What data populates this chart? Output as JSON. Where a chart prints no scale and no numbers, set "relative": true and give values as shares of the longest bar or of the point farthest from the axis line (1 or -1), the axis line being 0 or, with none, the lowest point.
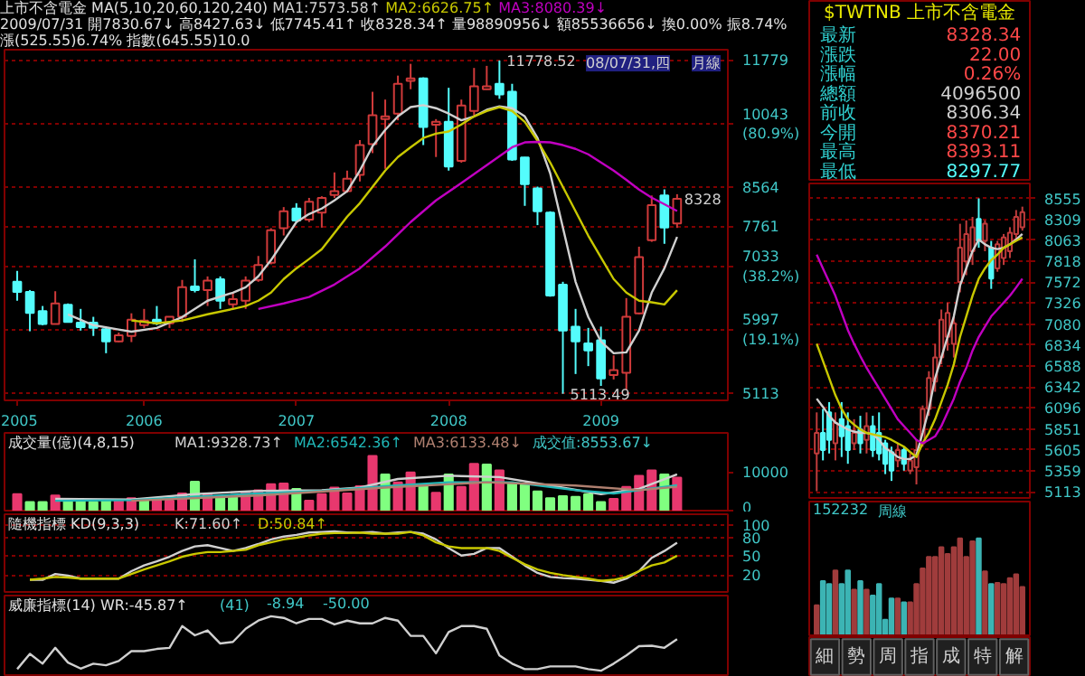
{
  "chart_data": [
    {
      "type": "candlestick",
      "title": "上市不含電金 MA(5,10,20,60,120,240)",
      "subtitle": "2009/07/31 開7830.67↓ 高8427.63↓ 低7745.41↑ 收8328.34↑ 量98890956↓ 額85536656↓ 換0.00% 振8.74% 漲(525.55)6.74% 指數(645.55)10.0",
      "log": true,
      "grid": "y",
      "x": [
        "2005-03",
        "2005-04",
        "2005-05",
        "2005-06",
        "2005-07",
        "2005-08",
        "2005-09",
        "2005-10",
        "2005-11",
        "2005-12",
        "2006-01",
        "2006-02",
        "2006-03",
        "2006-04",
        "2006-05",
        "2006-06",
        "2006-07",
        "2006-08",
        "2006-09",
        "2006-10",
        "2006-11",
        "2006-12",
        "2007-01",
        "2007-02",
        "2007-03",
        "2007-04",
        "2007-05",
        "2007-06",
        "2007-07",
        "2007-08",
        "2007-09",
        "2007-10",
        "2007-11",
        "2007-12",
        "2008-01",
        "2008-02",
        "2008-03",
        "2008-04",
        "2008-05",
        "2008-06",
        "2008-07",
        "2008-08",
        "2008-09",
        "2008-10",
        "2008-11",
        "2008-12",
        "2009-01",
        "2009-02",
        "2009-03",
        "2009-04",
        "2009-05",
        "2009-06",
        "2009-07"
      ],
      "ohlc": [
        [
          6768,
          6955,
          6455,
          6600
        ],
        [
          6600,
          6630,
          5980,
          6260
        ],
        [
          6290,
          6370,
          6070,
          6090
        ],
        [
          6090,
          6610,
          6090,
          6411
        ],
        [
          6390,
          6411,
          6110,
          6120
        ],
        [
          6110,
          6324,
          5990,
          6040
        ],
        [
          6110,
          6200,
          5910,
          6030
        ],
        [
          6010,
          6030,
          5660,
          5830
        ],
        [
          5830,
          5960,
          5820,
          5920
        ],
        [
          5910,
          6255,
          5820,
          6155
        ],
        [
          6072,
          6324,
          6030,
          6140
        ],
        [
          6155,
          6370,
          6072,
          6100
        ],
        [
          6100,
          6200,
          6030,
          6200
        ],
        [
          6200,
          6800,
          6120,
          6677
        ],
        [
          6690,
          7160,
          6590,
          6630
        ],
        [
          6630,
          6860,
          6370,
          6790
        ],
        [
          6810,
          6860,
          6324,
          6455
        ],
        [
          6395,
          6590,
          6324,
          6480
        ],
        [
          6455,
          6860,
          6324,
          6790
        ],
        [
          6800,
          7220,
          6768,
          7060
        ],
        [
          7100,
          7740,
          7070,
          7700
        ],
        [
          7740,
          8160,
          7600,
          8075
        ],
        [
          8130,
          8240,
          7840,
          7890
        ],
        [
          7910,
          8350,
          7860,
          8270
        ],
        [
          8050,
          8385,
          7750,
          8350
        ],
        [
          8411,
          8900,
          8350,
          8490
        ],
        [
          8490,
          8940,
          8460,
          8760
        ],
        [
          8845,
          9650,
          8700,
          9530
        ],
        [
          9550,
          10890,
          9340,
          10270
        ],
        [
          10170,
          10680,
          8980,
          10240
        ],
        [
          10310,
          11340,
          10140,
          11110
        ],
        [
          11190,
          11680,
          10960,
          11260
        ],
        [
          11260,
          11290,
          9530,
          9970
        ],
        [
          10030,
          10170,
          9250,
          10100
        ],
        [
          10100,
          11000,
          8940,
          9030
        ],
        [
          9160,
          10680,
          9120,
          10520
        ],
        [
          10380,
          11560,
          10240,
          11040
        ],
        [
          10960,
          11620,
          10950,
          11040
        ],
        [
          11110,
          11778.52,
          10700,
          10820
        ],
        [
          10890,
          11110,
          9160,
          9190
        ],
        [
          9240,
          9250,
          8185,
          8640
        ],
        [
          8550,
          8590,
          7800,
          8075
        ],
        [
          8050,
          8075,
          6520,
          6540
        ],
        [
          6720,
          6768,
          5113.49,
          5990
        ],
        [
          6050,
          6324,
          5373,
          5829
        ],
        [
          5800,
          6030,
          5480,
          5700
        ],
        [
          5845,
          6050,
          5215,
          5315
        ],
        [
          5360,
          5630,
          5300,
          5425
        ],
        [
          5390,
          6498,
          5160,
          6200
        ],
        [
          6255,
          7390,
          6240,
          7200
        ],
        [
          7510,
          8400,
          7480,
          8200
        ],
        [
          8400,
          8530,
          7443,
          7753
        ],
        [
          7830.67,
          8427.63,
          7745.41,
          8328.34
        ]
      ],
      "colors": [
        "#54fcfc",
        "#54fcfc",
        "#54fcfc",
        "#d03a3a",
        "#54fcfc",
        "#54fcfc",
        "#54fcfc",
        "#54fcfc",
        "#d03a3a",
        "#d03a3a",
        "#d03a3a",
        "#54fcfc",
        "#d03a3a",
        "#d03a3a",
        "#54fcfc",
        "#d03a3a",
        "#54fcfc",
        "#d03a3a",
        "#d03a3a",
        "#d03a3a",
        "#d03a3a",
        "#d03a3a",
        "#54fcfc",
        "#d03a3a",
        "#d03a3a",
        "#d03a3a",
        "#d03a3a",
        "#d03a3a",
        "#d03a3a",
        "#d03a3a",
        "#d03a3a",
        "#d03a3a",
        "#54fcfc",
        "#d03a3a",
        "#54fcfc",
        "#d03a3a",
        "#d03a3a",
        "#d03a3a",
        "#54fcfc",
        "#54fcfc",
        "#54fcfc",
        "#54fcfc",
        "#54fcfc",
        "#54fcfc",
        "#54fcfc",
        "#54fcfc",
        "#54fcfc",
        "#d03a3a",
        "#d03a3a",
        "#d03a3a",
        "#d03a3a",
        "#54fcfc",
        "#d03a3a"
      ],
      "series": [
        {
          "type": "line",
          "name": "MA1:7573.58↑",
          "color": "#d0d0d0",
          "x": [
            "2005-07",
            "2005-09",
            "2005-11",
            "2005-12",
            "2006-02",
            "2006-04",
            "2006-06",
            "2006-08",
            "2006-09",
            "2006-10",
            "2006-11",
            "2006-12",
            "2007-01",
            "2007-02",
            "2007-03",
            "2007-04",
            "2007-05",
            "2007-06",
            "2007-07",
            "2007-08",
            "2007-09",
            "2007-10",
            "2007-11",
            "2007-12",
            "2008-01",
            "2008-02",
            "2008-03",
            "2008-04",
            "2008-05",
            "2008-06",
            "2008-07",
            "2008-08",
            "2008-09",
            "2008-10",
            "2008-11",
            "2008-12",
            "2009-01",
            "2009-02",
            "2009-03",
            "2009-04",
            "2009-05",
            "2009-06",
            "2009-07"
          ],
          "values": [
            6239,
            6072,
            6006,
            5974,
            6030,
            6197,
            6455,
            6587,
            6677,
            6861,
            7146,
            7494,
            7859,
            8020,
            8130,
            8297,
            8490,
            8940,
            9504,
            9899,
            10240,
            10480,
            10530,
            10452,
            10311,
            10140,
            10240,
            10410,
            10500,
            10452,
            10240,
            9700,
            8880,
            7753,
            6768,
            6197,
            5829,
            5660,
            5673,
            5990,
            6587,
            7000,
            7573.58
          ]
        },
        {
          "type": "line",
          "name": "MA2:6626.75↑",
          "color": "#c8c800",
          "x": [
            "2005-12",
            "2006-02",
            "2006-04",
            "2006-06",
            "2006-08",
            "2006-09",
            "2006-10",
            "2006-11",
            "2006-12",
            "2007-01",
            "2007-02",
            "2007-03",
            "2007-04",
            "2007-05",
            "2007-06",
            "2007-07",
            "2007-08",
            "2007-09",
            "2007-10",
            "2007-11",
            "2007-12",
            "2008-01",
            "2008-02",
            "2008-03",
            "2008-04",
            "2008-05",
            "2008-06",
            "2008-07",
            "2008-08",
            "2008-09",
            "2008-10",
            "2008-11",
            "2008-12",
            "2009-01",
            "2009-02",
            "2009-03",
            "2009-04",
            "2009-05",
            "2009-06",
            "2009-07"
          ],
          "values": [
            6143,
            6100,
            6143,
            6239,
            6324,
            6370,
            6455,
            6587,
            6815,
            7000,
            7165,
            7343,
            7648,
            7966,
            8240,
            8584,
            8940,
            9249,
            9478,
            9700,
            9806,
            9860,
            10034,
            10240,
            10380,
            10480,
            10380,
            10100,
            9634,
            9124,
            8584,
            8075,
            7596,
            7195,
            6815,
            6587,
            6455,
            6430,
            6395,
            6626.75
          ]
        },
        {
          "type": "line",
          "name": "MA3:8080.39↓",
          "color": "#c000c0",
          "x": [
            "2006-10",
            "2006-12",
            "2007-02",
            "2007-04",
            "2007-06",
            "2007-08",
            "2007-10",
            "2007-12",
            "2008-02",
            "2008-04",
            "2008-06",
            "2008-07",
            "2008-08",
            "2008-09",
            "2008-10",
            "2008-11",
            "2008-12",
            "2009-01",
            "2009-02",
            "2009-03",
            "2009-04",
            "2009-05",
            "2009-06",
            "2009-07"
          ],
          "values": [
            6324,
            6411,
            6515,
            6722,
            7000,
            7393,
            7859,
            8297,
            8666,
            9062,
            9478,
            9595,
            9608,
            9595,
            9530,
            9440,
            9312,
            9124,
            8940,
            8736,
            8526,
            8354,
            8218,
            8080.39
          ]
        }
      ],
      "xlim": [
        "2005-02",
        "2009-11"
      ],
      "ylim": [
        5030,
        12100
      ],
      "xticks": [
        {
          "value": "2005-03",
          "label": "2005"
        },
        {
          "value": "2006-01",
          "label": "2006"
        },
        {
          "value": "2007-01",
          "label": "2007"
        },
        {
          "value": "2008-01",
          "label": "2008"
        },
        {
          "value": "2009-01",
          "label": "2009"
        }
      ],
      "yticks": [
        11779,
        {
          "value": 10043,
          "label": "10043\n(80.9%)"
        },
        8564,
        7761,
        {
          "value": 7033,
          "label": "7033\n(38.2%)"
        },
        {
          "value": 5997,
          "label": "5997\n(19.1%)"
        },
        5113
      ],
      "annotations": [
        {
          "text": "11778.52",
          "x": "2008-05",
          "y": 11778.52
        },
        {
          "text": "5113.49",
          "x": "2008-10",
          "y": 5113.49
        },
        {
          "text": "8328",
          "x": "2009-07",
          "y": 8328.34
        },
        "08/07/31,四",
        "月線"
      ]
    },
    {
      "type": "bar",
      "title": "成交量(億)(4,8,15)",
      "tick_labels": "y",
      "x": [
        "2005-03",
        "2005-04",
        "2005-05",
        "2005-06",
        "2005-07",
        "2005-08",
        "2005-09",
        "2005-10",
        "2005-11",
        "2005-12",
        "2006-01",
        "2006-02",
        "2006-03",
        "2006-04",
        "2006-05",
        "2006-06",
        "2006-07",
        "2006-08",
        "2006-09",
        "2006-10",
        "2006-11",
        "2006-12",
        "2007-01",
        "2007-02",
        "2007-03",
        "2007-04",
        "2007-05",
        "2007-06",
        "2007-07",
        "2007-08",
        "2007-09",
        "2007-10",
        "2007-11",
        "2007-12",
        "2008-01",
        "2008-02",
        "2008-03",
        "2008-04",
        "2008-05",
        "2008-06",
        "2008-07",
        "2008-08",
        "2008-09",
        "2008-10",
        "2008-11",
        "2008-12",
        "2009-01",
        "2009-02",
        "2009-03",
        "2009-04",
        "2009-05",
        "2009-06",
        "2009-07"
      ],
      "values": [
        4240,
        2200,
        2200,
        3900,
        2700,
        2700,
        2200,
        2540,
        2540,
        3220,
        2700,
        2540,
        2540,
        4400,
        7460,
        4240,
        3730,
        3390,
        4900,
        5250,
        6780,
        6950,
        5590,
        2540,
        4240,
        5930,
        4400,
        6270,
        14070,
        9320,
        7290,
        9830,
        6440,
        4580,
        9320,
        6100,
        12040,
        11870,
        10340,
        6950,
        6610,
        4920,
        3220,
        3730,
        3560,
        4240,
        2200,
        3050,
        6100,
        8980,
        10340,
        9320,
        8480
      ],
      "colors": [
        "#e8386e",
        "#80ff80",
        "#80ff80",
        "#e8386e",
        "#80ff80",
        "#80ff80",
        "#80ff80",
        "#80ff80",
        "#e8386e",
        "#e8386e",
        "#80ff80",
        "#e8386e",
        "#e8386e",
        "#e8386e",
        "#80ff80",
        "#e8386e",
        "#80ff80",
        "#80ff80",
        "#e8386e",
        "#e8386e",
        "#e8386e",
        "#e8386e",
        "#80ff80",
        "#e8386e",
        "#e8386e",
        "#e8386e",
        "#e8386e",
        "#e8386e",
        "#e8386e",
        "#80ff80",
        "#e8386e",
        "#e8386e",
        "#80ff80",
        "#e8386e",
        "#80ff80",
        "#e8386e",
        "#e8386e",
        "#80ff80",
        "#e8386e",
        "#80ff80",
        "#80ff80",
        "#80ff80",
        "#80ff80",
        "#80ff80",
        "#80ff80",
        "#80ff80",
        "#80ff80",
        "#e8386e",
        "#e8386e",
        "#e8386e",
        "#e8386e",
        "#80ff80",
        "#e8386e"
      ],
      "series": [
        {
          "type": "line",
          "name": "MA1:9328.73↑",
          "color": "#d0d0d0",
          "x": [
            "2005-06",
            "2005-12",
            "2006-05",
            "2006-10",
            "2007-03",
            "2007-06",
            "2007-09",
            "2008-01",
            "2008-05",
            "2008-09",
            "2009-01",
            "2009-04",
            "2009-07"
          ],
          "values": [
            3050,
            2880,
            4240,
            5090,
            5250,
            5930,
            8140,
            8980,
            8640,
            6440,
            4240,
            5590,
            9330
          ]
        },
        {
          "type": "line",
          "name": "MA2:6542.36↑",
          "color": "#20b8b8",
          "x": [
            "2005-06",
            "2005-12",
            "2006-05",
            "2006-10",
            "2007-03",
            "2007-08",
            "2008-01",
            "2008-06",
            "2008-11",
            "2009-02",
            "2009-07"
          ],
          "values": [
            2540,
            2710,
            3560,
            4410,
            5090,
            6270,
            7290,
            7290,
            5250,
            4410,
            6540
          ]
        },
        {
          "type": "line",
          "name": "MA3:6133.48↓",
          "color": "#b08070",
          "x": [
            "2005-12",
            "2006-10",
            "2007-08",
            "2008-04",
            "2008-11",
            "2009-04",
            "2009-07"
          ],
          "values": [
            2540,
            3900,
            5930,
            7290,
            6440,
            5250,
            6130
          ]
        }
      ],
      "xlim": [
        "2005-02",
        "2009-11"
      ],
      "ylim": [
        0,
        20000
      ],
      "yticks": [
        0,
        10000
      ],
      "annotations": [
        "成交值:8553.67↓"
      ]
    },
    {
      "type": "line",
      "title": "隨機指標 KD(9,3,3)",
      "tick_labels": "y",
      "grid": "y",
      "x": [
        "2005-04",
        "2005-05",
        "2005-06",
        "2005-07",
        "2005-08",
        "2005-09",
        "2005-10",
        "2005-11",
        "2005-12",
        "2006-01",
        "2006-02",
        "2006-03",
        "2006-04",
        "2006-05",
        "2006-06",
        "2006-07",
        "2006-08",
        "2006-09",
        "2006-10",
        "2006-11",
        "2006-12",
        "2007-01",
        "2007-02",
        "2007-03",
        "2007-04",
        "2007-05",
        "2007-06",
        "2007-07",
        "2007-08",
        "2007-09",
        "2007-10",
        "2007-11",
        "2007-12",
        "2008-01",
        "2008-02",
        "2008-03",
        "2008-04",
        "2008-05",
        "2008-06",
        "2008-07",
        "2008-08",
        "2008-09",
        "2008-10",
        "2008-11",
        "2008-12",
        "2009-01",
        "2009-02",
        "2009-03",
        "2009-04",
        "2009-05",
        "2009-06",
        "2009-07"
      ],
      "series": [
        {
          "name": "K:71.60↑",
          "color": "#d0d0d0",
          "values": [
            12.4,
            12.4,
            21.6,
            18.9,
            14.3,
            14.3,
            14.3,
            14.3,
            26.2,
            35.4,
            41.8,
            49.2,
            58.4,
            65.7,
            67.6,
            63.0,
            58.4,
            63.0,
            69.4,
            76.8,
            81.4,
            84.1,
            87.8,
            88.7,
            89.7,
            87.8,
            87.8,
            88.7,
            86.0,
            87.8,
            88.7,
            86.0,
            76.8,
            63.0,
            51.0,
            53.8,
            63.0,
            63.0,
            49.2,
            35.4,
            23.4,
            17.0,
            15.2,
            14.3,
            12.4,
            10.6,
            7.8,
            14.3,
            26.2,
            47.4,
            58.4,
            71.6
          ]
        },
        {
          "name": "D:50.84↑",
          "color": "#c8c800",
          "values": [
            12.4,
            14.3,
            17.0,
            16.1,
            14.3,
            14.3,
            14.3,
            14.3,
            21.6,
            29.0,
            35.4,
            41.8,
            49.2,
            53.8,
            56.6,
            56.6,
            58.4,
            60.2,
            67.6,
            72.2,
            76.8,
            79.5,
            83.2,
            86.0,
            86.9,
            86.9,
            87.8,
            86.0,
            86.0,
            86.0,
            88.7,
            83.2,
            72.2,
            65.7,
            63.0,
            63.0,
            63.0,
            58.4,
            47.4,
            37.2,
            29.0,
            23.4,
            19.8,
            17.0,
            14.3,
            10.6,
            12.4,
            17.0,
            26.2,
            35.4,
            40.0,
            50.84
          ]
        }
      ],
      "xlim": [
        "2005-02",
        "2009-11"
      ],
      "ylim": [
        -7,
        117
      ],
      "yticks": [
        20,
        50,
        80,
        100
      ]
    },
    {
      "type": "line",
      "title": "威廉指標(14) WR:-45.87↑",
      "tick_labels": false,
      "relative": true,
      "x": [
        "2005-03",
        "2005-04",
        "2005-05",
        "2005-06",
        "2005-07",
        "2005-08",
        "2005-09",
        "2005-10",
        "2005-11",
        "2005-12",
        "2006-01",
        "2006-02",
        "2006-03",
        "2006-04",
        "2006-05",
        "2006-06",
        "2006-07",
        "2006-08",
        "2006-09",
        "2006-10",
        "2006-11",
        "2006-12",
        "2007-01",
        "2007-02",
        "2007-03",
        "2007-04",
        "2007-05",
        "2007-06",
        "2007-07",
        "2007-08",
        "2007-09",
        "2007-10",
        "2007-11",
        "2007-12",
        "2008-01",
        "2008-02",
        "2008-03",
        "2008-04",
        "2008-05",
        "2008-06",
        "2008-07",
        "2008-08",
        "2008-09",
        "2008-10",
        "2008-11",
        "2008-12",
        "2009-01",
        "2009-02",
        "2009-03",
        "2009-04",
        "2009-05",
        "2009-06",
        "2009-07"
      ],
      "series": [
        {
          "color": "#d0d0d0",
          "values": [
            0.03,
            0.31,
            0.13,
            0.42,
            0.15,
            0.04,
            0.13,
            0.1,
            0.18,
            0.36,
            0.36,
            0.4,
            0.42,
            0.82,
            0.65,
            0.74,
            0.5,
            0.53,
            0.77,
            0.92,
            1.0,
            0.97,
            0.87,
            0.95,
            0.95,
            0.85,
            0.92,
            0.87,
            0.87,
            0.97,
            0.92,
            0.64,
            0.64,
            0.32,
            0.71,
            0.82,
            0.82,
            0.77,
            0.28,
            0.13,
            0.03,
            0.03,
            0.08,
            0.08,
            0.08,
            0.03,
            0,
            0.13,
            0.28,
            0.45,
            0.46,
            0.42,
            0.58
          ]
        }
      ],
      "xlim": [
        "2005-02",
        "2009-11"
      ],
      "annotations": [
        "(41)",
        "-8.94",
        "-50.00"
      ]
    },
    {
      "type": "other",
      "title": "$TWTNB 上市不含電金",
      "annotations": [
        "最新",
        "8328.34",
        "漲跌",
        "22.00",
        "漲幅",
        "0.26%",
        "總額",
        "4096500",
        "前收",
        "8306.34",
        "今開",
        "8370.21",
        "最高",
        "8393.11",
        "最低",
        "8297.77"
      ],
      "colors": [
        "#ff4848",
        "#ff4848",
        "#ff4848",
        "#d0d0d0",
        "#d0d0d0",
        "#ff4848",
        "#ff4848",
        "#54fcfc"
      ]
    },
    {
      "type": "candlestick",
      "grid": "y",
      "tick_labels": "y",
      "categories": [
        null,
        null,
        null,
        null,
        null,
        null,
        null,
        null,
        null,
        null,
        null,
        null,
        null,
        null,
        null,
        null,
        null,
        null,
        null,
        null,
        null,
        null,
        null,
        null,
        null,
        null,
        null,
        null,
        null,
        null,
        null,
        null,
        null,
        null
      ],
      "ohlc": [
        [
          5562,
          6044,
          5119,
          5803
        ],
        [
          5803,
          6085,
          5481,
          5602
        ],
        [
          6044,
          6165,
          5562,
          5722
        ],
        [
          5682,
          6044,
          5481,
          5924
        ],
        [
          5964,
          6165,
          5521,
          5763
        ],
        [
          5883,
          6044,
          5441,
          5602
        ],
        [
          5682,
          5964,
          5602,
          5803
        ],
        [
          5843,
          6004,
          5562,
          5682
        ],
        [
          5722,
          6044,
          5562,
          5883
        ],
        [
          5883,
          6004,
          5521,
          5602
        ],
        [
          5803,
          6044,
          5481,
          5562
        ],
        [
          5682,
          5722,
          5320,
          5441
        ],
        [
          5578,
          5642,
          5240,
          5360
        ],
        [
          5481,
          5682,
          5401,
          5602
        ],
        [
          5602,
          5642,
          5360,
          5441
        ],
        [
          5360,
          5562,
          5320,
          5481
        ],
        [
          5401,
          5722,
          5199,
          5602
        ],
        [
          5682,
          6125,
          5642,
          6085
        ],
        [
          6085,
          6527,
          6004,
          6447
        ],
        [
          6406,
          6849,
          6286,
          6688
        ],
        [
          6688,
          7251,
          6608,
          7131
        ],
        [
          6930,
          7332,
          6769,
          7211
        ],
        [
          6849,
          7171,
          6688,
          7090
        ],
        [
          7573,
          8257,
          7453,
          7976
        ],
        [
          7815,
          8297,
          7654,
          8137
        ],
        [
          7935,
          8338,
          7774,
          8217
        ],
        [
          8314,
          8555,
          7976,
          8056
        ],
        [
          8056,
          8297,
          7935,
          8257
        ],
        [
          7976,
          8056,
          7493,
          7613
        ],
        [
          7734,
          8056,
          7694,
          8016
        ],
        [
          7855,
          8137,
          7774,
          8096
        ],
        [
          7935,
          8217,
          7855,
          8153
        ],
        [
          8137,
          8418,
          8056,
          8338
        ],
        [
          8217,
          8458,
          8177,
          8394
        ]
      ],
      "colors": [
        "#c03c3c",
        "#54fcfc",
        "#54fcfc",
        "#c03c3c",
        "#54fcfc",
        "#54fcfc",
        "#c03c3c",
        "#54fcfc",
        "#c03c3c",
        "#54fcfc",
        "#54fcfc",
        "#54fcfc",
        "#54fcfc",
        "#c03c3c",
        "#54fcfc",
        "#c03c3c",
        "#c03c3c",
        "#c03c3c",
        "#c03c3c",
        "#c03c3c",
        "#c03c3c",
        "#c03c3c",
        "#c03c3c",
        "#c03c3c",
        "#c03c3c",
        "#c03c3c",
        "#54fcfc",
        "#c03c3c",
        "#54fcfc",
        "#c03c3c",
        "#c03c3c",
        "#c03c3c",
        "#c03c3c",
        "#c03c3c"
      ],
      "series": [
        {
          "type": "line",
          "color": "#d0d0d0",
          "values": [
            6205,
            6109,
            6004,
            5924,
            5883,
            5843,
            5819,
            5803,
            5803,
            5787,
            5722,
            5626,
            5578,
            5521,
            5497,
            5497,
            5545,
            5803,
            6085,
            6447,
            6688,
            6930,
            7171,
            7533,
            7734,
            7935,
            8072,
            8016,
            7976,
            7960,
            7976,
            8016,
            8072,
            8137
          ]
        },
        {
          "type": "line",
          "color": "#c8c800",
          "values": [
            6849,
            6648,
            6447,
            6245,
            6085,
            5964,
            5900,
            5843,
            5803,
            5787,
            5771,
            5755,
            5722,
            5682,
            5642,
            5578,
            5521,
            5682,
            5803,
            5964,
            6165,
            6366,
            6608,
            6930,
            7171,
            7412,
            7613,
            7734,
            7831,
            7895,
            7976,
            8016,
            8056,
            8096
          ]
        },
        {
          "type": "line",
          "color": "#c000c0",
          "values": [
            7895,
            7734,
            7573,
            7412,
            7211,
            7010,
            6849,
            6704,
            6567,
            6447,
            6326,
            6205,
            6085,
            5964,
            5883,
            5803,
            5722,
            5682,
            5722,
            5763,
            5883,
            6044,
            6205,
            6406,
            6567,
            6769,
            6930,
            7050,
            7171,
            7251,
            7332,
            7412,
            7509,
            7613
          ]
        }
      ],
      "ylim": [
        5040,
        8730
      ],
      "yticks": [
        8555,
        8309,
        8063,
        7818,
        7572,
        7326,
        7080,
        6834,
        6588,
        6342,
        6096,
        5851,
        5605,
        5359,
        5113
      ]
    },
    {
      "type": "bar",
      "relative": true,
      "tick_labels": false,
      "categories": [
        null,
        null,
        null,
        null,
        null,
        null,
        null,
        null,
        null,
        null,
        null,
        null,
        null,
        null,
        null,
        null,
        null,
        null,
        null,
        null,
        null,
        null,
        null,
        null,
        null,
        null,
        null,
        null,
        null,
        null,
        null,
        null,
        null,
        null
      ],
      "values": [
        0.31,
        0.56,
        0.53,
        0.67,
        0.53,
        0.67,
        0.47,
        0.56,
        0.47,
        0.41,
        0.53,
        0.16,
        0.38,
        0.38,
        0.34,
        0.34,
        0.53,
        0.69,
        0.81,
        0.81,
        0.91,
        0.84,
        0.91,
        1.0,
        0.81,
        0.97,
        1.0,
        0.66,
        0.53,
        0.54,
        0.53,
        0.59,
        0.63,
        0.5
      ],
      "colors": [
        "#a03c3c",
        "#3cb4b4",
        "#3cb4b4",
        "#a03c3c",
        "#3cb4b4",
        "#3cb4b4",
        "#a03c3c",
        "#3cb4b4",
        "#a03c3c",
        "#3cb4b4",
        "#3cb4b4",
        "#3cb4b4",
        "#3cb4b4",
        "#a03c3c",
        "#3cb4b4",
        "#a03c3c",
        "#a03c3c",
        "#a03c3c",
        "#a03c3c",
        "#a03c3c",
        "#a03c3c",
        "#a03c3c",
        "#a03c3c",
        "#a03c3c",
        "#a03c3c",
        "#a03c3c",
        "#3cb4b4",
        "#a03c3c",
        "#3cb4b4",
        "#a03c3c",
        "#a03c3c",
        "#a03c3c",
        "#a03c3c",
        "#a03c3c"
      ],
      "annotations": [
        "152232",
        "周線"
      ]
    },
    {
      "type": "other",
      "annotations": [
        "細",
        "勢",
        "周",
        "指",
        "成",
        "特",
        "解"
      ]
    }
  ]
}
